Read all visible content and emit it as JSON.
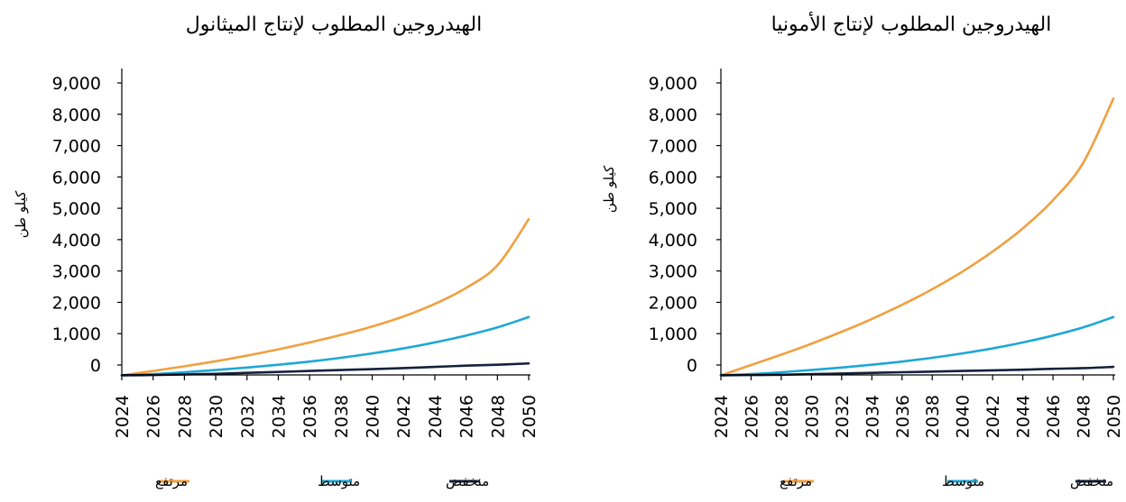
{
  "charts": [
    {
      "title": "الهيدروجين المطلوب لإنتاج الميثانول",
      "ylabel": "كيلو طن",
      "legend": [
        {
          "label": "منخفض",
          "color": "#14213d"
        },
        {
          "label": "متوسط",
          "color": "#1ea7d6"
        },
        {
          "label": "مرتفع",
          "color": "#f0a040"
        }
      ]
    },
    {
      "title": "الهيدروجين المطلوب لإنتاج الأمونيا",
      "ylabel": "كيلو طن",
      "legend": [
        {
          "label": "منخفض",
          "color": "#14213d"
        },
        {
          "label": "متوسط",
          "color": "#1ea7d6"
        },
        {
          "label": "مرتفع",
          "color": "#f0a040"
        }
      ]
    }
  ],
  "chart_data": [
    {
      "type": "line",
      "title": "الهيدروجين المطلوب لإنتاج الميثانول",
      "ylabel": "كيلو طن",
      "xlabel": "",
      "x": [
        2024,
        2026,
        2028,
        2030,
        2032,
        2034,
        2036,
        2038,
        2040,
        2042,
        2044,
        2046,
        2048,
        2050
      ],
      "x_ticks": [
        "2024",
        "2026",
        "2028",
        "2030",
        "2032",
        "2034",
        "2036",
        "2038",
        "2040",
        "2042",
        "2044",
        "2046",
        "2048",
        "2050"
      ],
      "y_ticks": [
        "0",
        "1,000",
        "2,000",
        "3,000",
        "4,000",
        "5,000",
        "6,000",
        "7,000",
        "8,000",
        "9,000"
      ],
      "y_tick_values": [
        0,
        1000,
        2000,
        3000,
        4000,
        5000,
        6000,
        7000,
        8000,
        9000
      ],
      "ylim": [
        -330,
        9000
      ],
      "grid": false,
      "legend_position": "bottom",
      "series": [
        {
          "name": "مرتفع",
          "color": "#f0a040",
          "values": [
            -330,
            -190,
            -40,
            120,
            300,
            500,
            720,
            960,
            1230,
            1550,
            1950,
            2460,
            3180,
            4650
          ]
        },
        {
          "name": "متوسط",
          "color": "#1ea7d6",
          "values": [
            -330,
            -290,
            -230,
            -160,
            -80,
            10,
            110,
            230,
            370,
            530,
            720,
            940,
            1200,
            1530
          ]
        },
        {
          "name": "منخفض",
          "color": "#14213d",
          "values": [
            -330,
            -320,
            -300,
            -280,
            -250,
            -220,
            -190,
            -160,
            -130,
            -100,
            -60,
            -20,
            10,
            50
          ]
        }
      ]
    },
    {
      "type": "line",
      "title": "الهيدروجين المطلوب لإنتاج الأمونيا",
      "ylabel": "كيلو طن",
      "xlabel": "",
      "x": [
        2024,
        2026,
        2028,
        2030,
        2032,
        2034,
        2036,
        2038,
        2040,
        2042,
        2044,
        2046,
        2048,
        2050
      ],
      "x_ticks": [
        "2024",
        "2026",
        "2028",
        "2030",
        "2032",
        "2034",
        "2036",
        "2038",
        "2040",
        "2042",
        "2044",
        "2046",
        "2048",
        "2050"
      ],
      "y_ticks": [
        "0",
        "1,000",
        "2,000",
        "3,000",
        "4,000",
        "5,000",
        "6,000",
        "7,000",
        "8,000",
        "9,000"
      ],
      "y_tick_values": [
        0,
        1000,
        2000,
        3000,
        4000,
        5000,
        6000,
        7000,
        8000,
        9000
      ],
      "ylim": [
        -330,
        9000
      ],
      "grid": false,
      "legend_position": "bottom",
      "series": [
        {
          "name": "مرتفع",
          "color": "#f0a040",
          "values": [
            -330,
            0,
            330,
            680,
            1060,
            1470,
            1920,
            2420,
            2980,
            3620,
            4360,
            5260,
            6450,
            8500
          ]
        },
        {
          "name": "متوسط",
          "color": "#1ea7d6",
          "values": [
            -330,
            -290,
            -230,
            -160,
            -80,
            10,
            110,
            230,
            370,
            530,
            720,
            940,
            1200,
            1530
          ]
        },
        {
          "name": "منخفض",
          "color": "#14213d",
          "values": [
            -330,
            -320,
            -310,
            -290,
            -270,
            -250,
            -230,
            -210,
            -190,
            -170,
            -150,
            -120,
            -100,
            -60
          ]
        }
      ]
    }
  ]
}
